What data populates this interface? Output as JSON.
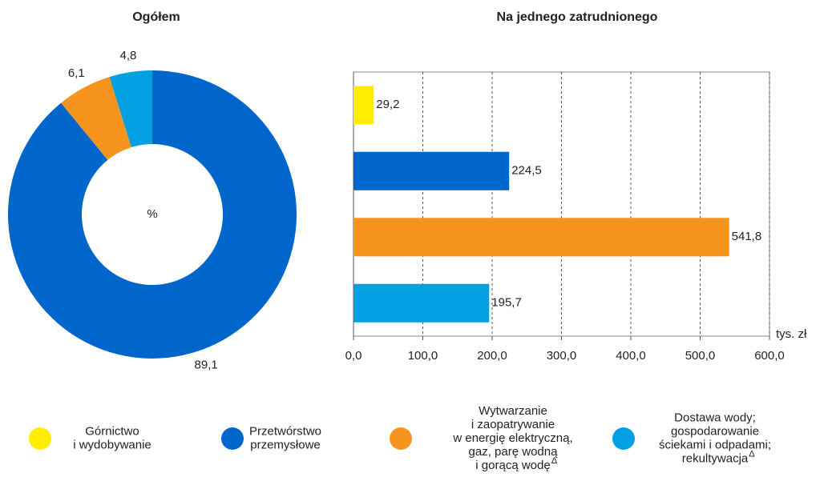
{
  "chart_data": [
    {
      "type": "donut",
      "title": "Ogółem",
      "center_label": "%",
      "categories": [
        null,
        null,
        null
      ],
      "values": [
        89.1,
        6.1,
        4.8
      ],
      "value_labels": [
        "89,1",
        "6,1",
        "4,8"
      ],
      "colors": [
        "#0066cc",
        "#f7941d",
        "#00a0e3"
      ]
    },
    {
      "type": "hbar",
      "title": "Na jednego zatrudnionego",
      "categories": [
        null,
        null,
        null,
        null
      ],
      "values": [
        29.2,
        224.5,
        541.8,
        195.7
      ],
      "value_labels": [
        "29,2",
        "224,5",
        "541,8",
        "195,7"
      ],
      "colors": [
        "#ffed00",
        "#0066cc",
        "#f7941d",
        "#00a0e3"
      ],
      "xlim": [
        0,
        600
      ],
      "xticks": [
        {
          "value": 0,
          "label": "0,0"
        },
        {
          "value": 100,
          "label": "100,0"
        },
        {
          "value": 200,
          "label": "200,0"
        },
        {
          "value": 300,
          "label": "300,0"
        },
        {
          "value": 400,
          "label": "400,0"
        },
        {
          "value": 500,
          "label": "500,0"
        },
        {
          "value": 600,
          "label": "600,0"
        }
      ],
      "x_label": "tys. zł",
      "grid": true
    }
  ],
  "legend": [
    {
      "color": "#ffed00",
      "lines": [
        "Górnictwo",
        "i wydobywanie"
      ]
    },
    {
      "color": "#0066cc",
      "lines": [
        "Przetwórstwo",
        "przemysłowe"
      ]
    },
    {
      "color": "#f7941d",
      "lines": [
        "Wytwarzanie",
        "i zaopatrywanie",
        "w energię elektryczną,",
        "gaz, parę wodną",
        "i gorącą wodę"
      ],
      "superscript": "Δ"
    },
    {
      "color": "#00a0e3",
      "lines": [
        "Dostawa wody;",
        "gospodarowanie",
        "ściekami i odpadami;",
        "rekultywacja"
      ],
      "superscript": "Δ"
    }
  ]
}
